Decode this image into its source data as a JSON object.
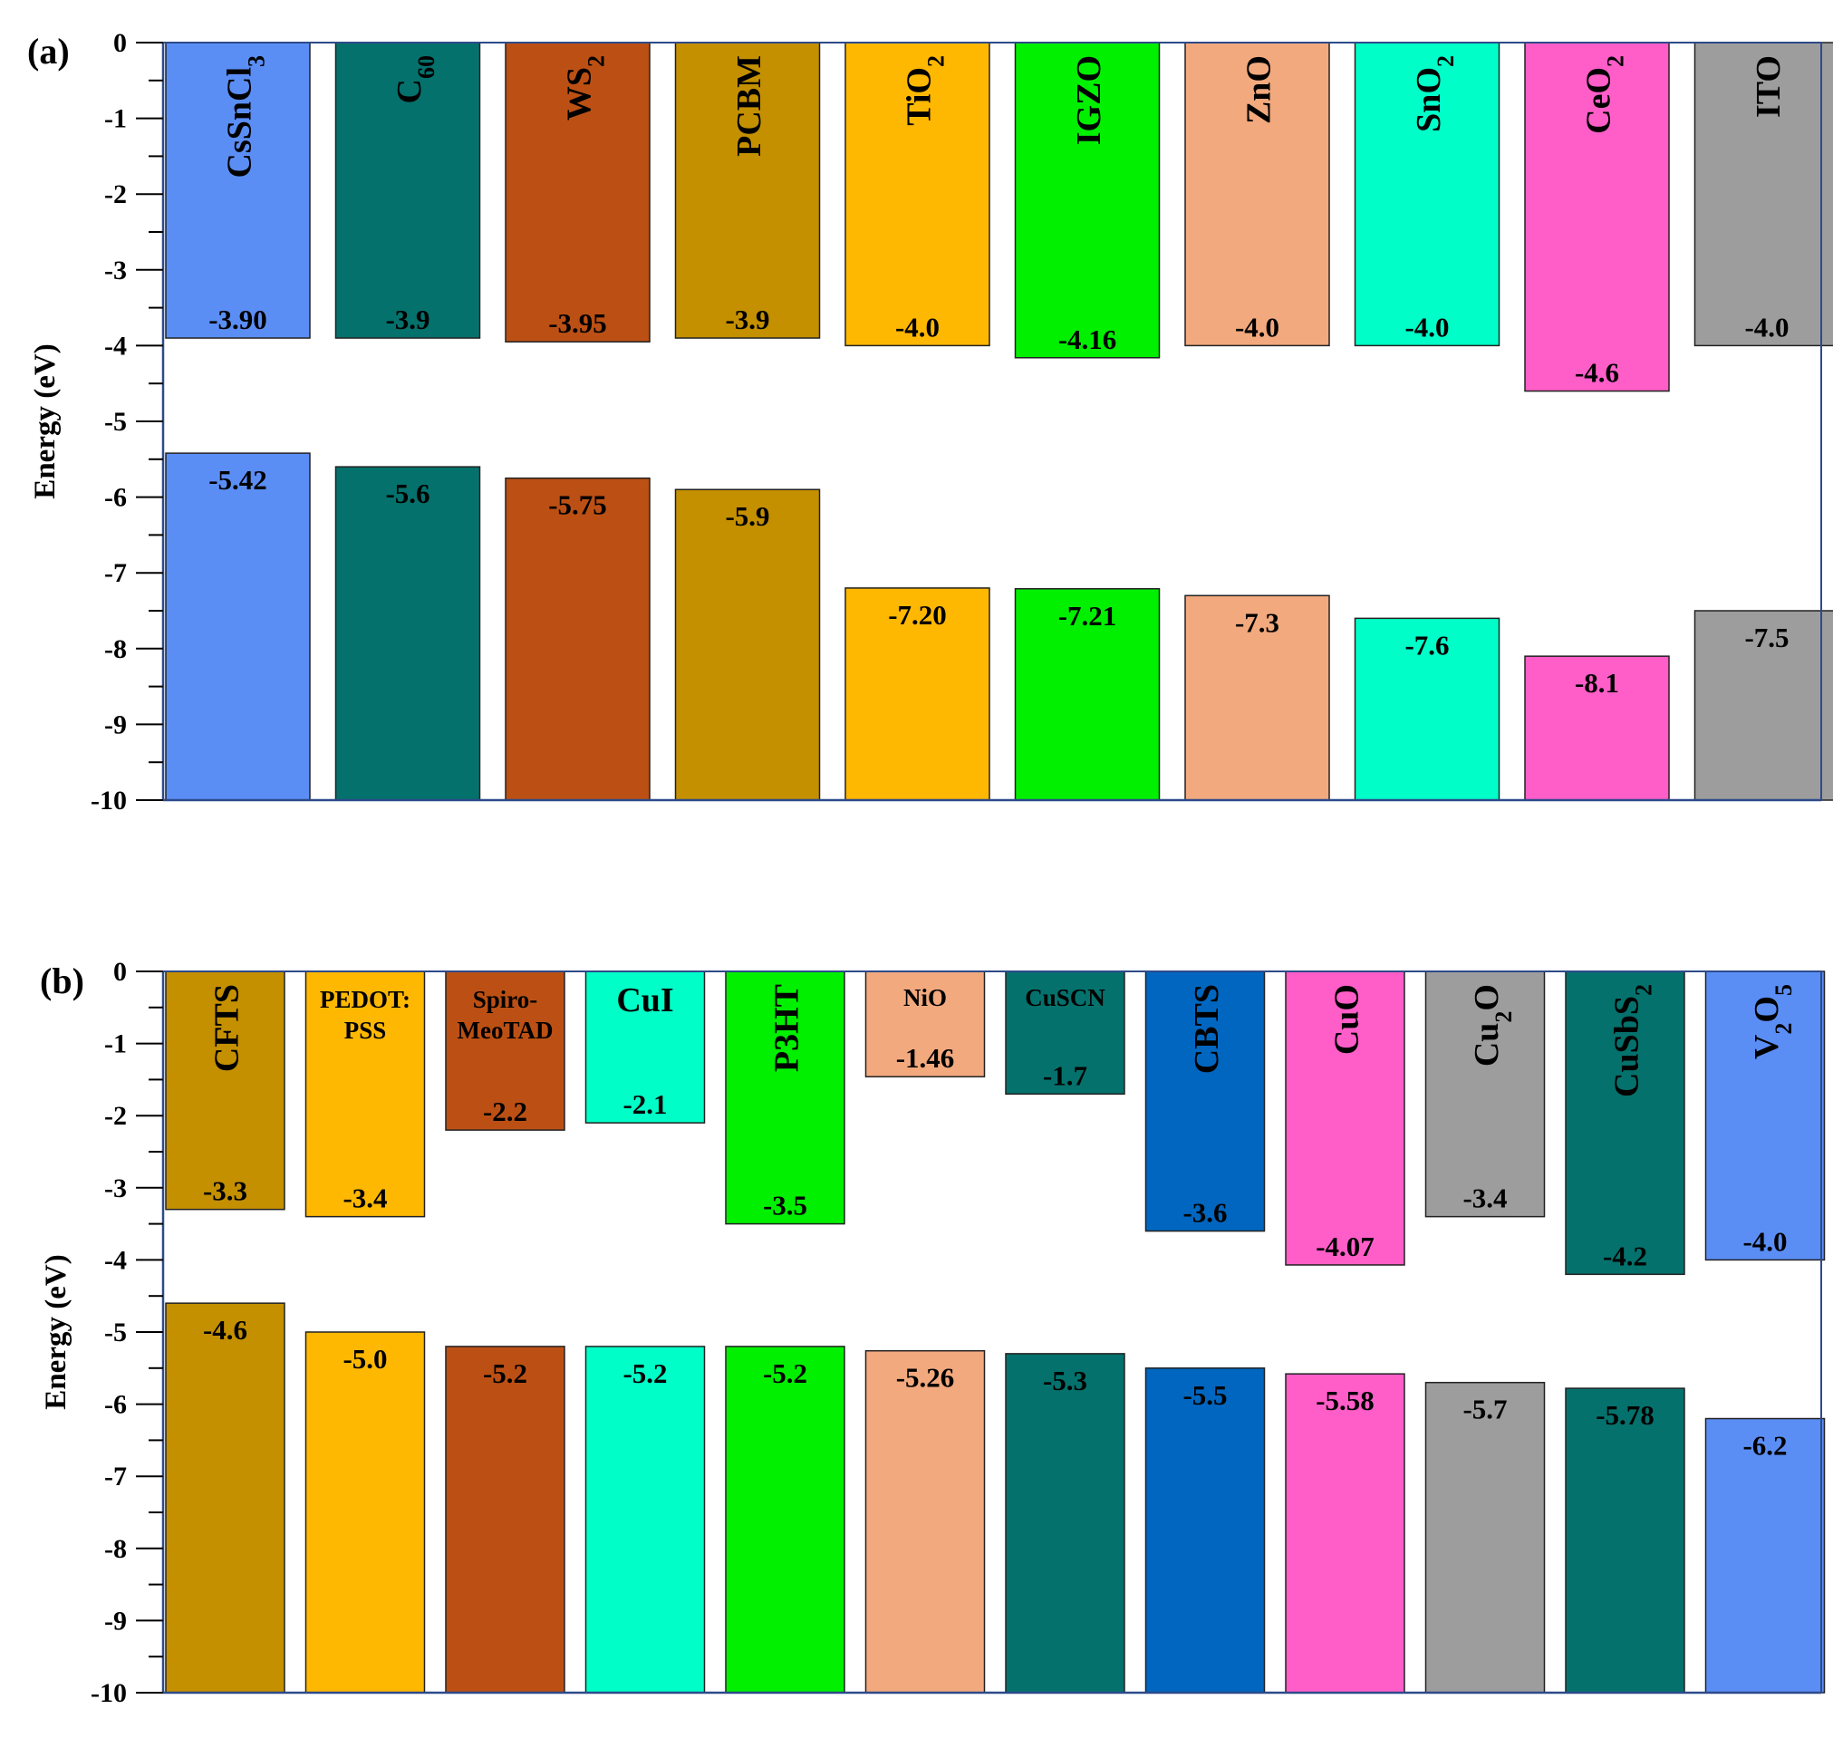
{
  "chart_data": [
    {
      "type": "bar",
      "panel_label": "(a)",
      "ylabel": "Energy (eV)",
      "ylim": [
        -10,
        0
      ],
      "yticks": [
        "0",
        "-1",
        "-2",
        "-3",
        "-4",
        "-5",
        "-6",
        "-7",
        "-8",
        "-9",
        "-10"
      ],
      "series": [
        {
          "name": "",
          "role": "upper",
          "values": [
            -3.9,
            -3.9,
            -3.95,
            -3.9,
            -4.0,
            -4.16,
            -4.0,
            -4.0,
            -4.6,
            -4.0
          ]
        },
        {
          "name": "",
          "role": "lower",
          "values": [
            -5.42,
            -5.6,
            -5.75,
            -5.9,
            -7.2,
            -7.21,
            -7.3,
            -7.6,
            -8.1,
            -7.5
          ]
        }
      ],
      "materials": [
        {
          "name": "CsSnCl",
          "sub": "3",
          "upper": -3.9,
          "upper_label": "-3.90",
          "lower": -5.42,
          "lower_label": "-5.42",
          "color": "#5b8ef5"
        },
        {
          "name": "C",
          "sub": "60",
          "upper": -3.9,
          "upper_label": "-3.9",
          "lower": -5.6,
          "lower_label": "-5.6",
          "color": "#05716c"
        },
        {
          "name": "WS",
          "sub": "2",
          "upper": -3.95,
          "upper_label": "-3.95",
          "lower": -5.75,
          "lower_label": "-5.75",
          "color": "#bc5014"
        },
        {
          "name": "PCBM",
          "sub": "",
          "upper": -3.9,
          "upper_label": "-3.9",
          "lower": -5.9,
          "lower_label": "-5.9",
          "color": "#c49000"
        },
        {
          "name": "TiO",
          "sub": "2",
          "upper": -4.0,
          "upper_label": "-4.0",
          "lower": -7.2,
          "lower_label": "-7.20",
          "color": "#ffb802"
        },
        {
          "name": "IGZO",
          "sub": "",
          "upper": -4.16,
          "upper_label": "-4.16",
          "lower": -7.21,
          "lower_label": "-7.21",
          "color": "#00f000"
        },
        {
          "name": "ZnO",
          "sub": "",
          "upper": -4.0,
          "upper_label": "-4.0",
          "lower": -7.3,
          "lower_label": "-7.3",
          "color": "#f2a97e"
        },
        {
          "name": "SnO",
          "sub": "2",
          "upper": -4.0,
          "upper_label": "-4.0",
          "lower": -7.6,
          "lower_label": "-7.6",
          "color": "#00ffc8"
        },
        {
          "name": "CeO",
          "sub": "2",
          "upper": -4.6,
          "upper_label": "-4.6",
          "lower": -8.1,
          "lower_label": "-8.1",
          "color": "#ff5ec8"
        },
        {
          "name": "ITO",
          "sub": "",
          "upper": -4.0,
          "upper_label": "-4.0",
          "lower": -7.5,
          "lower_label": "-7.5",
          "color": "#9d9d9d"
        }
      ]
    },
    {
      "type": "bar",
      "panel_label": "(b)",
      "ylabel": "Energy (eV)",
      "ylim": [
        -10,
        0
      ],
      "yticks": [
        "0",
        "-1",
        "-2",
        "-3",
        "-4",
        "-5",
        "-6",
        "-7",
        "-8",
        "-9",
        "-10"
      ],
      "series": [
        {
          "name": "",
          "role": "upper",
          "values": [
            -3.3,
            -3.4,
            -2.2,
            -2.1,
            -3.5,
            -1.46,
            -1.7,
            -3.6,
            -4.07,
            -3.4,
            -4.2,
            -4.0
          ]
        },
        {
          "name": "",
          "role": "lower",
          "values": [
            -4.6,
            -5.0,
            -5.2,
            -5.2,
            -5.2,
            -5.26,
            -5.3,
            -5.5,
            -5.58,
            -5.7,
            -5.78,
            -6.2
          ]
        }
      ],
      "materials": [
        {
          "name": "CFTS",
          "sub": "",
          "tail": "",
          "upper": -3.3,
          "upper_label": "-3.3",
          "lower": -4.6,
          "lower_label": "-4.6",
          "color": "#c49000",
          "orient": "vertical"
        },
        {
          "name": "PEDOT:",
          "name2": "PSS",
          "upper": -3.4,
          "upper_label": "-3.4",
          "lower": -5.0,
          "lower_label": "-5.0",
          "color": "#ffb802",
          "orient": "stack"
        },
        {
          "name": "Spiro-",
          "name2": "MeoTAD",
          "upper": -2.2,
          "upper_label": "-2.2",
          "lower": -5.2,
          "lower_label": "-5.2",
          "color": "#bc5014",
          "orient": "stack"
        },
        {
          "name": "CuI",
          "sub": "",
          "upper": -2.1,
          "upper_label": "-2.1",
          "lower": -5.2,
          "lower_label": "-5.2",
          "color": "#00ffc8",
          "orient": "horizontal"
        },
        {
          "name": "P3HT",
          "sub": "",
          "tail": "",
          "upper": -3.5,
          "upper_label": "-3.5",
          "lower": -5.2,
          "lower_label": "-5.2",
          "color": "#00f000",
          "orient": "vertical"
        },
        {
          "name": "NiO",
          "sub": "",
          "upper": -1.46,
          "upper_label": "-1.46",
          "lower": -5.26,
          "lower_label": "-5.26",
          "color": "#f2a97e",
          "orient": "horizontal-small"
        },
        {
          "name": "CuSCN",
          "sub": "",
          "upper": -1.7,
          "upper_label": "-1.7",
          "lower": -5.3,
          "lower_label": "-5.3",
          "color": "#05716c",
          "orient": "horizontal-small"
        },
        {
          "name": "CBTS",
          "sub": "",
          "tail": "",
          "upper": -3.6,
          "upper_label": "-3.6",
          "lower": -5.5,
          "lower_label": "-5.5",
          "color": "#0066bf",
          "orient": "vertical"
        },
        {
          "name": "CuO",
          "sub": "",
          "tail": "",
          "upper": -4.07,
          "upper_label": "-4.07",
          "lower": -5.58,
          "lower_label": "-5.58",
          "color": "#ff5ec8",
          "orient": "vertical"
        },
        {
          "name": "Cu",
          "sub": "2",
          "tail": "O",
          "upper": -3.4,
          "upper_label": "-3.4",
          "lower": -5.7,
          "lower_label": "-5.7",
          "color": "#9d9d9d",
          "orient": "vertical"
        },
        {
          "name": "CuSbS",
          "sub": "2",
          "tail": "",
          "upper": -4.2,
          "upper_label": "-4.2",
          "lower": -5.78,
          "lower_label": "-5.78",
          "color": "#05716c",
          "orient": "vertical"
        },
        {
          "name": "V",
          "sub": "2",
          "tail": "O",
          "sub2": "5",
          "upper": -4.0,
          "upper_label": "-4.0",
          "lower": -6.2,
          "lower_label": "-6.2",
          "color": "#5b8ef5",
          "orient": "vertical"
        }
      ]
    }
  ]
}
